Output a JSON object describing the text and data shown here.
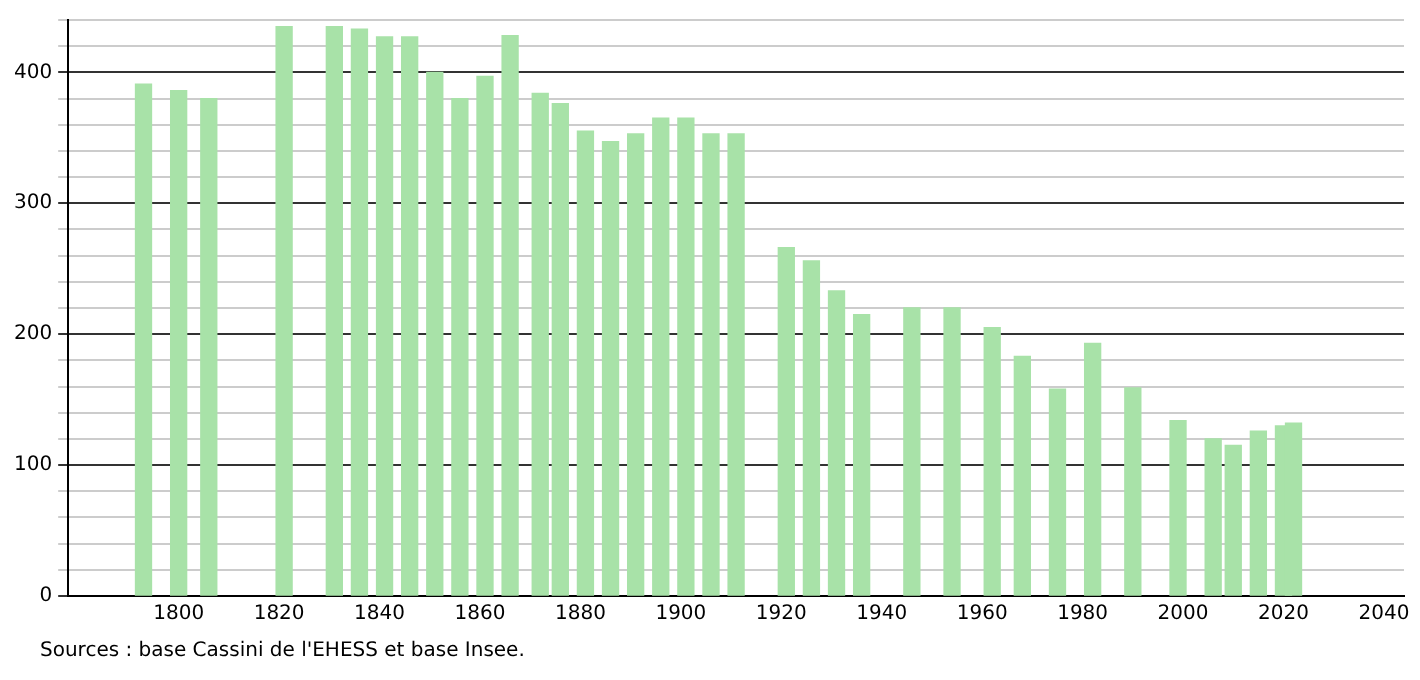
{
  "chart_data": {
    "type": "bar",
    "color": "#a8e2a8",
    "x": [
      1793,
      1800,
      1806,
      1821,
      1831,
      1836,
      1841,
      1846,
      1851,
      1856,
      1861,
      1866,
      1872,
      1876,
      1881,
      1886,
      1891,
      1896,
      1901,
      1906,
      1911,
      1921,
      1926,
      1931,
      1936,
      1946,
      1954,
      1962,
      1968,
      1975,
      1982,
      1990,
      1999,
      2006,
      2010,
      2015,
      2020,
      2022
    ],
    "values": [
      391,
      386,
      380,
      435,
      435,
      433,
      427,
      427,
      400,
      380,
      397,
      428,
      384,
      376,
      355,
      347,
      353,
      365,
      365,
      353,
      353,
      266,
      256,
      233,
      215,
      220,
      220,
      205,
      183,
      158,
      193,
      159,
      134,
      120,
      115,
      126,
      130,
      132
    ],
    "xlim": [
      1778,
      2044
    ],
    "xticks": [
      1800,
      1820,
      1840,
      1860,
      1880,
      1900,
      1920,
      1940,
      1960,
      1980,
      2000,
      2020,
      2040
    ],
    "ylim": [
      0,
      440
    ],
    "yticks": [
      0,
      {
        "value": 20,
        "label": null
      },
      {
        "value": 40,
        "label": null
      },
      {
        "value": 60,
        "label": null
      },
      {
        "value": 80,
        "label": null
      },
      100,
      {
        "value": 120,
        "label": null
      },
      {
        "value": 140,
        "label": null
      },
      {
        "value": 160,
        "label": null
      },
      {
        "value": 180,
        "label": null
      },
      200,
      {
        "value": 220,
        "label": null
      },
      {
        "value": 240,
        "label": null
      },
      {
        "value": 260,
        "label": null
      },
      {
        "value": 280,
        "label": null
      },
      300,
      {
        "value": 320,
        "label": null
      },
      {
        "value": 340,
        "label": null
      },
      {
        "value": 360,
        "label": null
      },
      {
        "value": 380,
        "label": null
      },
      400,
      {
        "value": 420,
        "label": null
      },
      {
        "value": 440,
        "label": null
      }
    ],
    "grid": "y",
    "legend": false,
    "annotations": [
      "Sources : base Cassini de l'EHESS et base Insee."
    ]
  }
}
